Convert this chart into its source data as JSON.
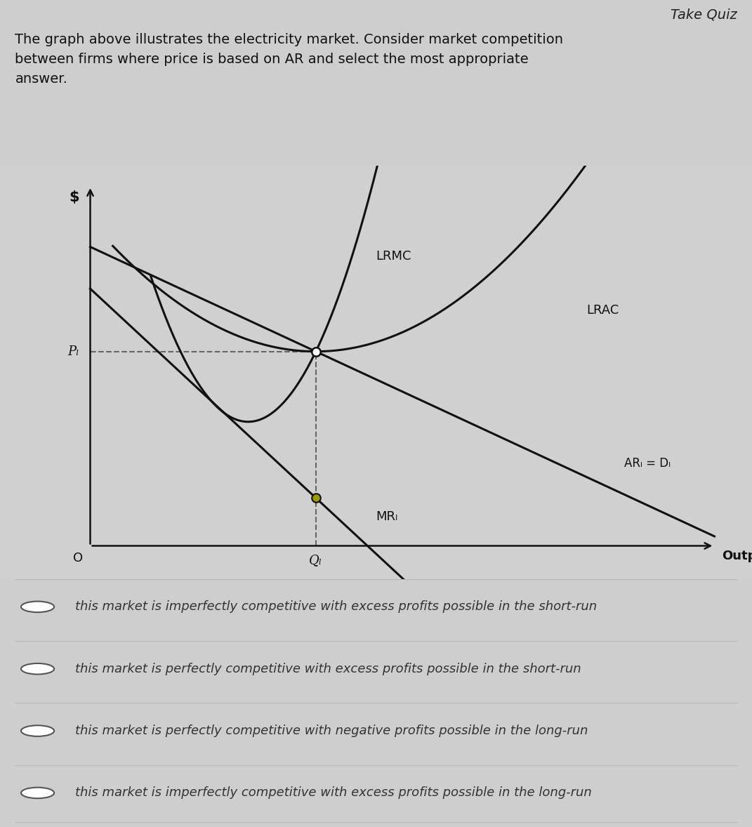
{
  "title_top": "Take Quiz",
  "header_text": "The graph above illustrates the electricity market. Consider market competition\nbetween firms where price is based on AR and select the most appropriate\nanswer.",
  "ylabel": "$",
  "xlabel": "Output",
  "origin_label": "O",
  "ql_label": "Qₗ",
  "pl_label": "Pₗ",
  "curve_labels": {
    "LRMC": "LRMC",
    "LRAC": "LRAC",
    "AR": "ARₗ = Dₗ",
    "MR": "MRₗ"
  },
  "options": [
    "this market is imperfectly competitive with excess profits possible in the short-run",
    "this market is perfectly competitive with excess profits possible in the short-run",
    "this market is perfectly competitive with negative profits possible in the long-run",
    "this market is imperfectly competitive with excess profits possible in the long-run"
  ],
  "bg_color": "#cecece",
  "chart_bg_color": "#d0d0d0",
  "text_area_bg": "#e8e8e8",
  "options_bg": "#e0e0e0",
  "line_color": "#111111",
  "dashed_color": "#666666",
  "dot_color_upper": "#ffffff",
  "dot_color_lower": "#999900",
  "option_text_color": "#333333",
  "divider_color": "#bbbbbb",
  "title_color": "#222222",
  "header_color": "#111111"
}
